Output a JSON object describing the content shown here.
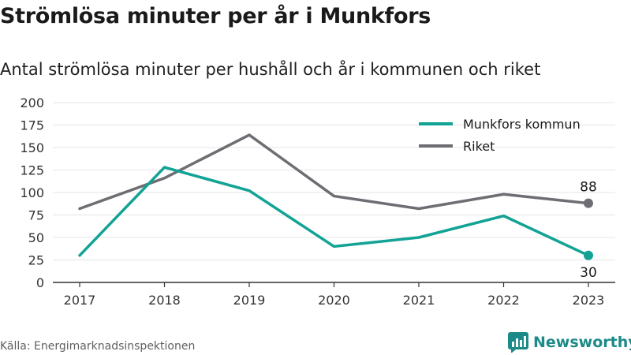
{
  "title": "Strömlösa minuter per år i Munkfors",
  "subtitle": "Antal strömlösa minuter per hushåll och år i kommunen och riket",
  "source": "Källa: Energimarknadsinspektionen",
  "brand": {
    "name": "Newsworthy",
    "icon": "newsworthy-logo-icon",
    "color": "#1c8a88"
  },
  "chart_data": {
    "type": "line",
    "x": [
      "2017",
      "2018",
      "2019",
      "2020",
      "2021",
      "2022",
      "2023"
    ],
    "ylim": [
      0,
      200
    ],
    "yticks": [
      0,
      25,
      50,
      75,
      100,
      125,
      150,
      175,
      200
    ],
    "grid": true,
    "legend_position": "top-right",
    "series": [
      {
        "name": "Munkfors kommun",
        "color": "#12a395",
        "values": [
          30,
          128,
          102,
          40,
          50,
          74,
          30
        ],
        "end_label": "30",
        "end_label_position": "below"
      },
      {
        "name": "Riket",
        "color": "#6e6d73",
        "values": [
          82,
          116,
          164,
          96,
          82,
          98,
          88
        ],
        "end_label": "88",
        "end_label_position": "above"
      }
    ]
  }
}
